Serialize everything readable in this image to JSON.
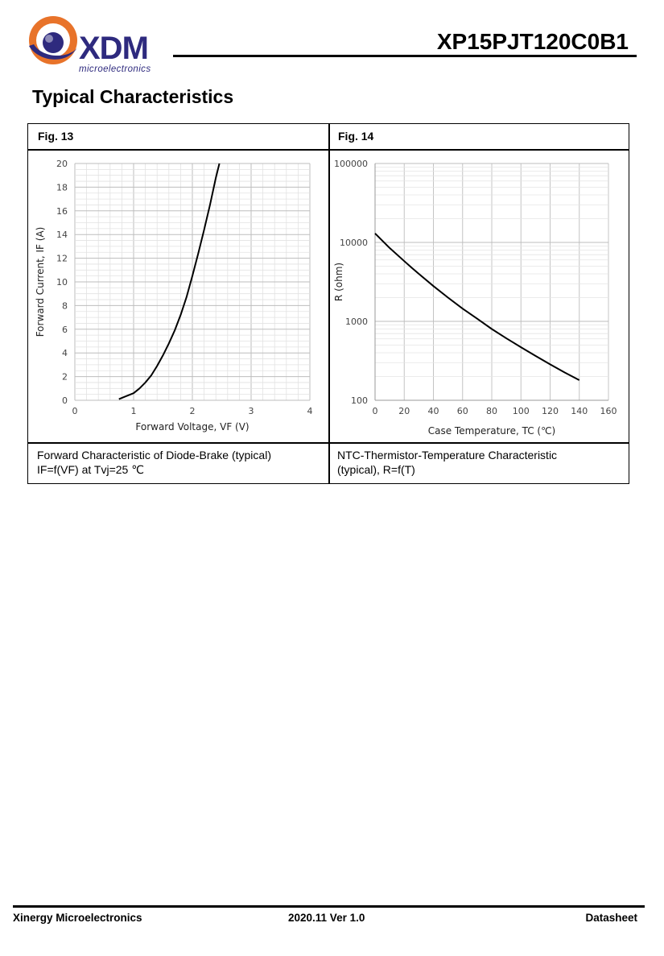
{
  "header": {
    "logo_text": "XDM",
    "logo_sub": "microelectronics",
    "doc_title": "XP15PJT120C0B1"
  },
  "section_title": "Typical Characteristics",
  "figures": [
    {
      "label": "Fig. 13",
      "caption_line1": "Forward Characteristic of Diode-Brake (typical)",
      "caption_line2": "IF=f(VF) at Tvj=25 ℃"
    },
    {
      "label": "Fig. 14",
      "caption_line1": "NTC-Thermistor-Temperature Characteristic",
      "caption_line2": "(typical), R=f(T)"
    }
  ],
  "chart_data": [
    {
      "type": "line",
      "xlabel": "Forward Voltage, VF (V)",
      "ylabel": "Forward Current, IF (A)",
      "xlim": [
        0,
        4
      ],
      "ylim": [
        0,
        20
      ],
      "x_ticks": [
        "0",
        "1",
        "2",
        "3",
        "4"
      ],
      "y_ticks": [
        "0",
        "2",
        "4",
        "6",
        "8",
        "10",
        "12",
        "14",
        "16",
        "18",
        "20"
      ],
      "grid": true,
      "series": [
        {
          "x": [
            0.75,
            0.85,
            1.0,
            1.1,
            1.2,
            1.3,
            1.4,
            1.5,
            1.6,
            1.7,
            1.8,
            1.9,
            2.0,
            2.1,
            2.2,
            2.3,
            2.4,
            2.46
          ],
          "y": [
            0.1,
            0.3,
            0.6,
            1.0,
            1.5,
            2.1,
            2.9,
            3.8,
            4.8,
            5.9,
            7.2,
            8.7,
            10.5,
            12.4,
            14.4,
            16.5,
            18.8,
            20.0
          ]
        }
      ]
    },
    {
      "type": "line",
      "xlabel": "Case Temperature, TC (℃)",
      "ylabel": "R (ohm)",
      "xlim": [
        0,
        160
      ],
      "ylim": [
        100,
        100000
      ],
      "yscale": "log",
      "x_ticks": [
        "0",
        "20",
        "40",
        "60",
        "80",
        "100",
        "120",
        "140",
        "160"
      ],
      "y_ticks": [
        "100",
        "1000",
        "10000",
        "100000"
      ],
      "grid": true,
      "series": [
        {
          "x": [
            0,
            10,
            20,
            25,
            30,
            40,
            50,
            60,
            70,
            80,
            90,
            100,
            110,
            120,
            130,
            140
          ],
          "y": [
            13000,
            8500,
            5800,
            4800,
            4000,
            2800,
            2000,
            1450,
            1080,
            800,
            610,
            470,
            365,
            285,
            225,
            180
          ]
        }
      ]
    }
  ],
  "footer": {
    "left": "Xinergy Microelectronics",
    "center": "2020.11 Ver 1.0",
    "right": "Datasheet"
  }
}
